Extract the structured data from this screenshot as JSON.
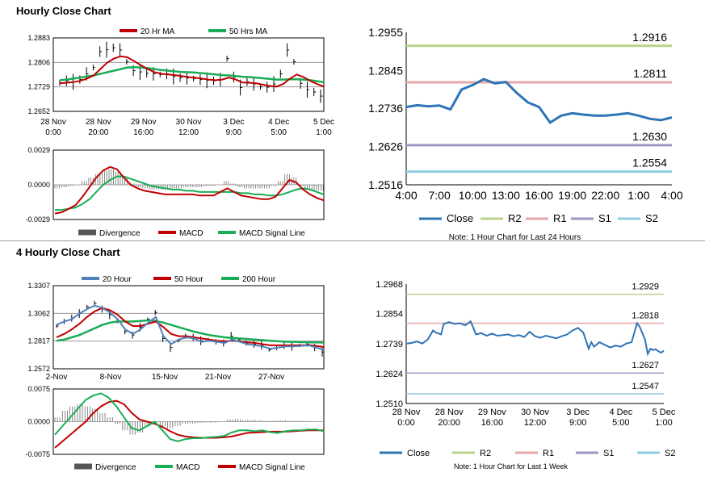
{
  "sections": {
    "hourly_title": "Hourly Close Chart",
    "four_hourly_title": "4 Hourly Close Chart"
  },
  "colors": {
    "close": "#2e75b6",
    "r2": "#b9d38a",
    "r1": "#e6a8a8",
    "s1": "#a294c0",
    "s2": "#8fcce2",
    "ma_red": "#c00000",
    "ma_green": "#1aad55",
    "ma_blue": "#4f81bd",
    "divergence": "#555555"
  },
  "chart_data": [
    {
      "id": "hourly_price",
      "type": "line",
      "title": "Hourly Close Chart",
      "legend": [
        "20 Hr MA",
        "50 Hrs MA"
      ],
      "ytick_labels": [
        "1.2883",
        "1.2806",
        "1.2729",
        "1.2652"
      ],
      "ylim": [
        1.2652,
        1.2883
      ],
      "xtick_labels": [
        [
          "28 Nov",
          "0:00"
        ],
        [
          "28 Nov",
          "20:00"
        ],
        [
          "29 Nov",
          "16:00"
        ],
        [
          "30 Nov",
          "12:00"
        ],
        [
          "3 Dec",
          "9:00"
        ],
        [
          "4 Dec",
          "5:00"
        ],
        [
          "5 Dec",
          "1:00"
        ]
      ],
      "series": [
        {
          "name": "Price",
          "values": [
            1.2742,
            1.2748,
            1.2745,
            1.2752,
            1.277,
            1.279,
            1.284,
            1.2846,
            1.2852,
            1.2845,
            1.2808,
            1.278,
            1.2776,
            1.2772,
            1.277,
            1.2768,
            1.277,
            1.2762,
            1.2758,
            1.2757,
            1.2755,
            1.2752,
            1.275,
            1.2748,
            1.2752,
            1.2818,
            1.276,
            1.2727,
            1.2745,
            1.2738,
            1.2729,
            1.2728,
            1.2738,
            1.277,
            1.2845,
            1.2808,
            1.274,
            1.272,
            1.2713,
            1.27
          ]
        },
        {
          "name": "20 Hr MA",
          "values": [
            1.274,
            1.2742,
            1.2744,
            1.2748,
            1.2755,
            1.2765,
            1.2785,
            1.2805,
            1.2818,
            1.2825,
            1.2822,
            1.281,
            1.2797,
            1.2785,
            1.2775,
            1.277,
            1.2768,
            1.2766,
            1.2763,
            1.276,
            1.2758,
            1.2755,
            1.2752,
            1.275,
            1.2752,
            1.2758,
            1.2752,
            1.2743,
            1.2742,
            1.274,
            1.2736,
            1.2732,
            1.273,
            1.2738,
            1.2755,
            1.2768,
            1.276,
            1.2748,
            1.2738,
            1.273
          ]
        },
        {
          "name": "50 Hrs MA",
          "values": [
            1.275,
            1.2752,
            1.2755,
            1.2758,
            1.2762,
            1.2765,
            1.277,
            1.2775,
            1.278,
            1.2785,
            1.279,
            1.2791,
            1.279,
            1.2788,
            1.2785,
            1.2782,
            1.278,
            1.2778,
            1.2776,
            1.2775,
            1.2774,
            1.2772,
            1.277,
            1.2768,
            1.2766,
            1.2765,
            1.2763,
            1.2761,
            1.276,
            1.2758,
            1.2756,
            1.2754,
            1.2752,
            1.2752,
            1.2753,
            1.2753,
            1.2752,
            1.275,
            1.2747,
            1.2744
          ]
        }
      ]
    },
    {
      "id": "hourly_macd",
      "type": "line",
      "legend": [
        "Divergence",
        "MACD",
        "MACD Signal Line"
      ],
      "ytick_labels": [
        "0.0029",
        "0.0000",
        "-0.0029"
      ],
      "ylim": [
        -0.0029,
        0.0029
      ],
      "series": [
        {
          "name": "Divergence",
          "values": [
            -0.0003,
            -0.0002,
            -0.0001,
            0.0,
            0.0003,
            0.0006,
            0.0009,
            0.0012,
            0.0013,
            0.0011,
            0.0006,
            0.0001,
            -0.0002,
            -0.0003,
            -0.0004,
            -0.0004,
            -0.0004,
            -0.0003,
            -0.0003,
            -0.0002,
            -0.0002,
            -0.0002,
            -0.0001,
            -0.0001,
            0.0,
            0.0003,
            0.0001,
            -0.0002,
            -0.0003,
            -0.0003,
            -0.0003,
            -0.0003,
            -0.0001,
            0.0003,
            0.0009,
            0.0006,
            -0.0001,
            -0.0004,
            -0.0005,
            -0.0005
          ]
        },
        {
          "name": "MACD",
          "values": [
            -0.0024,
            -0.0023,
            -0.002,
            -0.0017,
            -0.001,
            -0.0002,
            0.0006,
            0.0012,
            0.0015,
            0.0013,
            0.0006,
            0.0,
            -0.0003,
            -0.0005,
            -0.0006,
            -0.0007,
            -0.0008,
            -0.0008,
            -0.0008,
            -0.0008,
            -0.0008,
            -0.0009,
            -0.0009,
            -0.0009,
            -0.0006,
            -0.0003,
            -0.0006,
            -0.0009,
            -0.001,
            -0.0011,
            -0.0012,
            -0.0012,
            -0.001,
            -0.0003,
            0.0004,
            0.0002,
            -0.0004,
            -0.0008,
            -0.0011,
            -0.0013
          ]
        },
        {
          "name": "MACD Signal Line",
          "values": [
            -0.0021,
            -0.0021,
            -0.002,
            -0.0019,
            -0.0016,
            -0.0012,
            -0.0006,
            0.0,
            0.0004,
            0.0007,
            0.0007,
            0.0005,
            0.0003,
            0.0001,
            -0.0001,
            -0.0002,
            -0.0003,
            -0.0004,
            -0.0004,
            -0.0005,
            -0.0005,
            -0.0006,
            -0.0006,
            -0.0006,
            -0.0006,
            -0.0006,
            -0.0006,
            -0.0007,
            -0.0007,
            -0.0008,
            -0.0008,
            -0.0009,
            -0.0009,
            -0.0008,
            -0.0006,
            -0.0004,
            -0.0003,
            -0.0004,
            -0.0006,
            -0.0008
          ]
        }
      ]
    },
    {
      "id": "pivot_1h",
      "type": "line",
      "ylim": [
        1.2516,
        1.2955
      ],
      "ytick_labels": [
        "1.2955",
        "1.2845",
        "1.2736",
        "1.2626",
        "1.2516"
      ],
      "xtick_labels": [
        "4:00",
        "7:00",
        "10:00",
        "13:00",
        "16:00",
        "19:00",
        "22:00",
        "1:00",
        "4:00"
      ],
      "x_range": [
        4,
        28
      ],
      "close": {
        "x": [
          4,
          5,
          6,
          7,
          8,
          9,
          10,
          11,
          12,
          13,
          14,
          15,
          16,
          17,
          18,
          19,
          20,
          21,
          22,
          23,
          24,
          25,
          26,
          27,
          28
        ],
        "y": [
          1.274,
          1.2745,
          1.2742,
          1.2744,
          1.2733,
          1.279,
          1.2803,
          1.282,
          1.2808,
          1.2812,
          1.278,
          1.2753,
          1.274,
          1.2695,
          1.2715,
          1.2722,
          1.2718,
          1.2715,
          1.2715,
          1.2718,
          1.2722,
          1.2715,
          1.2706,
          1.2702,
          1.271
        ]
      },
      "levels": [
        {
          "name": "R2",
          "value": 1.2916,
          "label": "1.2916"
        },
        {
          "name": "R1",
          "value": 1.2811,
          "label": "1.2811"
        },
        {
          "name": "S1",
          "value": 1.263,
          "label": "1.2630"
        },
        {
          "name": "S2",
          "value": 1.2554,
          "label": "1.2554"
        }
      ],
      "legend": [
        "Close",
        "R2",
        "R1",
        "S1",
        "S2"
      ],
      "note": "Note: 1 Hour Chart for Last 24 Hours"
    },
    {
      "id": "four_hourly_price",
      "type": "line",
      "title": "4 Hourly Close Chart",
      "legend": [
        "20 Hour",
        "50 Hour",
        "200 Hour"
      ],
      "ytick_labels": [
        "1.3307",
        "1.3062",
        "1.2817",
        "1.2572"
      ],
      "ylim": [
        1.2572,
        1.3307
      ],
      "xtick_labels": [
        "2-Nov",
        "8-Nov",
        "15-Nov",
        "21-Nov",
        "27-Nov"
      ],
      "series": [
        {
          "name": "Price",
          "values": [
            1.295,
            1.299,
            1.302,
            1.306,
            1.312,
            1.315,
            1.31,
            1.305,
            1.299,
            1.29,
            1.287,
            1.294,
            1.301,
            1.307,
            1.284,
            1.276,
            1.282,
            1.286,
            1.285,
            1.282,
            1.283,
            1.281,
            1.28,
            1.286,
            1.283,
            1.28,
            1.279,
            1.278,
            1.274,
            1.276,
            1.278,
            1.277,
            1.278,
            1.279,
            1.276,
            1.272
          ]
        },
        {
          "name": "20 Hour",
          "values": [
            1.296,
            1.299,
            1.301,
            1.306,
            1.31,
            1.313,
            1.311,
            1.307,
            1.301,
            1.292,
            1.288,
            1.292,
            1.298,
            1.303,
            1.286,
            1.279,
            1.283,
            1.285,
            1.284,
            1.281,
            1.282,
            1.281,
            1.28,
            1.283,
            1.281,
            1.279,
            1.278,
            1.277,
            1.275,
            1.276,
            1.277,
            1.277,
            1.2775,
            1.278,
            1.276,
            1.274
          ]
        },
        {
          "name": "50 Hour",
          "values": [
            1.285,
            1.288,
            1.292,
            1.297,
            1.303,
            1.308,
            1.311,
            1.309,
            1.305,
            1.299,
            1.295,
            1.295,
            1.297,
            1.299,
            1.294,
            1.288,
            1.286,
            1.286,
            1.285,
            1.284,
            1.283,
            1.282,
            1.2815,
            1.282,
            1.2815,
            1.2805,
            1.28,
            1.279,
            1.278,
            1.278,
            1.278,
            1.278,
            1.278,
            1.2782,
            1.2775,
            1.2765
          ]
        },
        {
          "name": "200 Hour",
          "values": [
            1.282,
            1.283,
            1.285,
            1.287,
            1.29,
            1.293,
            1.296,
            1.298,
            1.299,
            1.299,
            1.299,
            1.2995,
            1.3,
            1.2995,
            1.298,
            1.296,
            1.294,
            1.292,
            1.29,
            1.2885,
            1.287,
            1.286,
            1.285,
            1.2845,
            1.284,
            1.2835,
            1.283,
            1.2825,
            1.282,
            1.2815,
            1.2812,
            1.281,
            1.2808,
            1.2806,
            1.2805,
            1.2804
          ]
        }
      ]
    },
    {
      "id": "four_hourly_macd",
      "type": "line",
      "legend": [
        "Divergence",
        "MACD",
        "MACD Signal Line"
      ],
      "ytick_labels": [
        "0.0075",
        "0.0000",
        "-0.0075"
      ],
      "ylim": [
        -0.0075,
        0.0075
      ],
      "series": [
        {
          "name": "Divergence",
          "values": [
            0.001,
            0.0025,
            0.0035,
            0.004,
            0.0035,
            0.003,
            0.002,
            0.001,
            -0.0005,
            -0.002,
            -0.003,
            -0.0025,
            -0.001,
            0.0,
            -0.001,
            -0.0015,
            -0.001,
            -0.0005,
            -0.0004,
            -0.0003,
            -0.0002,
            -0.0002,
            0.0,
            0.0005,
            0.0006,
            0.0004,
            0.0004,
            0.0003,
            0.0002,
            0.0002,
            0.0003,
            0.0002,
            0.0002,
            0.0002,
            0.0001,
            0.0
          ]
        },
        {
          "name": "MACD",
          "values": [
            -0.003,
            -0.001,
            0.001,
            0.003,
            0.005,
            0.006,
            0.0065,
            0.0055,
            0.0035,
            0.001,
            -0.0015,
            -0.002,
            -0.001,
            0.0,
            -0.002,
            -0.004,
            -0.0045,
            -0.004,
            -0.0038,
            -0.0038,
            -0.0036,
            -0.0035,
            -0.0033,
            -0.0025,
            -0.002,
            -0.002,
            -0.0022,
            -0.002,
            -0.0024,
            -0.0026,
            -0.0022,
            -0.002,
            -0.002,
            -0.0018,
            -0.0018,
            -0.0022
          ]
        },
        {
          "name": "MACD Signal Line",
          "values": [
            -0.006,
            -0.0045,
            -0.003,
            -0.0015,
            0.0,
            0.002,
            0.0035,
            0.0045,
            0.0048,
            0.004,
            0.002,
            0.0005,
            0.0,
            -0.0005,
            -0.0012,
            -0.0022,
            -0.003,
            -0.0034,
            -0.0036,
            -0.0037,
            -0.0037,
            -0.0037,
            -0.0036,
            -0.0034,
            -0.003,
            -0.0026,
            -0.0025,
            -0.0024,
            -0.0023,
            -0.0023,
            -0.0023,
            -0.0022,
            -0.0021,
            -0.002,
            -0.002,
            -0.002
          ]
        }
      ]
    },
    {
      "id": "pivot_1w",
      "type": "line",
      "ylim": [
        1.251,
        1.2968
      ],
      "ytick_labels": [
        "1.2968",
        "1.2854",
        "1.2739",
        "1.2624",
        "1.2510"
      ],
      "xtick_labels": [
        [
          "28 Nov",
          "0:00"
        ],
        [
          "28 Nov",
          "20:00"
        ],
        [
          "29 Nov",
          "16:00"
        ],
        [
          "30 Nov",
          "12:00"
        ],
        [
          "3 Dec",
          "9:00"
        ],
        [
          "4 Dec",
          "5:00"
        ],
        [
          "5 Dec",
          "1:00"
        ]
      ],
      "x_range": [
        0,
        96
      ],
      "close": {
        "x": [
          0,
          2,
          4,
          6,
          8,
          10,
          11,
          13,
          14,
          16,
          18,
          20,
          22,
          24,
          25,
          26,
          28,
          30,
          32,
          34,
          36,
          38,
          40,
          42,
          44,
          46,
          48,
          50,
          52,
          54,
          56,
          58,
          60,
          62,
          64,
          66,
          68,
          69,
          70,
          72,
          74,
          76,
          78,
          80,
          82,
          84,
          86,
          87,
          88,
          89,
          90,
          91,
          92,
          93,
          94,
          95,
          96
        ],
        "y": [
          1.274,
          1.2742,
          1.2748,
          1.274,
          1.2755,
          1.279,
          1.2782,
          1.2775,
          1.2815,
          1.2822,
          1.2815,
          1.2818,
          1.281,
          1.2825,
          1.28,
          1.2775,
          1.278,
          1.277,
          1.2778,
          1.277,
          1.2772,
          1.2775,
          1.2768,
          1.2772,
          1.2765,
          1.2785,
          1.2768,
          1.2762,
          1.277,
          1.2765,
          1.276,
          1.2768,
          1.2775,
          1.279,
          1.28,
          1.2782,
          1.272,
          1.2745,
          1.2728,
          1.2745,
          1.2735,
          1.2725,
          1.2732,
          1.2728,
          1.274,
          1.2745,
          1.2818,
          1.2805,
          1.278,
          1.2755,
          1.27,
          1.272,
          1.2715,
          1.2718,
          1.271,
          1.2705,
          1.2712
        ]
      },
      "levels": [
        {
          "name": "R2",
          "value": 1.2929,
          "label": "1.2929"
        },
        {
          "name": "R1",
          "value": 1.2818,
          "label": "1.2818"
        },
        {
          "name": "S1",
          "value": 1.2627,
          "label": "1.2627"
        },
        {
          "name": "S2",
          "value": 1.2547,
          "label": "1.2547"
        }
      ],
      "legend": [
        "Close",
        "R2",
        "R1",
        "S1",
        "S2"
      ],
      "note": "Note: 1 Hour Chart for Last 1 Week"
    }
  ]
}
